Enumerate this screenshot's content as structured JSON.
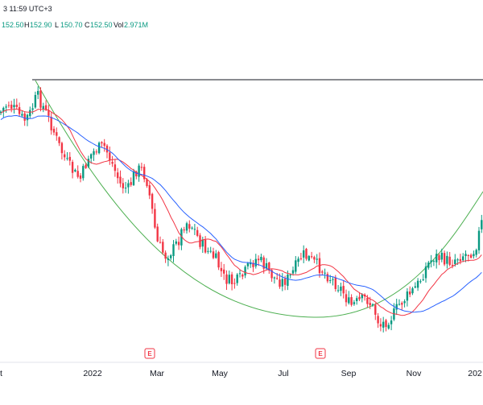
{
  "header": {
    "timestamp": "3 11:59 UTC+3",
    "open": "152.50",
    "high_label": "H",
    "high": "152.90",
    "low_label": "L",
    "low": "150.70",
    "close_label": "C",
    "close": "152.50",
    "vol_label": "Vol",
    "vol": "2.971M"
  },
  "colors": {
    "up": "#089981",
    "down": "#f23645",
    "ma_fast": "#f23645",
    "ma_slow": "#2962ff",
    "arc": "#4caf50",
    "resistance": "#131722"
  },
  "chart_data": {
    "type": "candlestick",
    "title": "",
    "xlabel": "",
    "ylabel": "",
    "x_ticks": [
      "t",
      "2022",
      "Mar",
      "May",
      "Jul",
      "Sep",
      "Nov",
      "202"
    ],
    "earnings_markers": [
      {
        "date": "2022-02-25",
        "label": "E"
      },
      {
        "date": "2022-07-29",
        "label": "E"
      }
    ],
    "resistance_level": {
      "label": "horizontal line",
      "price": "top"
    },
    "series": [
      {
        "type": "candles",
        "trend_note": "price falls from highs in late 2021 to lows in Sep-Oct 2022 then recovers"
      },
      {
        "type": "moving_average"
      },
      {
        "type": "moving_average"
      },
      {
        "type": "curve"
      }
    ],
    "grid": false
  }
}
